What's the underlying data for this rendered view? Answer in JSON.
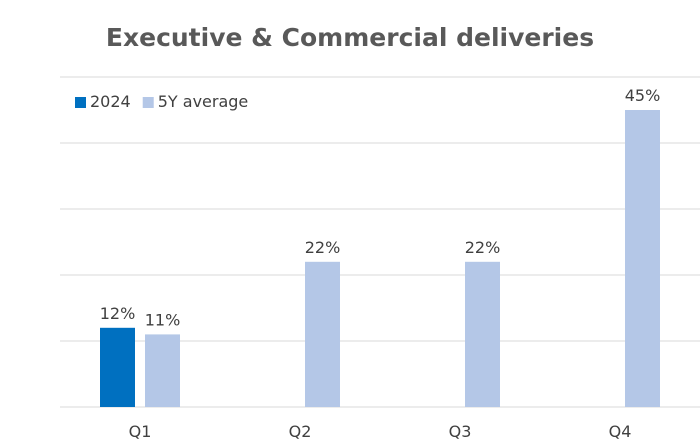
{
  "chart_data": {
    "type": "bar",
    "title": "Executive & Commercial deliveries",
    "xlabel": "",
    "ylabel": "",
    "categories": [
      "Q1",
      "Q2",
      "Q3",
      "Q4"
    ],
    "series": [
      {
        "name": "2024",
        "color": "#0070C0",
        "values": [
          12,
          null,
          null,
          null
        ],
        "labels": [
          "12%",
          "",
          "",
          ""
        ]
      },
      {
        "name": "5Y average",
        "color": "#B4C7E7",
        "values": [
          11,
          22,
          22,
          45
        ],
        "labels": [
          "11%",
          "22%",
          "22%",
          "45%"
        ]
      }
    ],
    "ylim": [
      0,
      50
    ],
    "unit": "%",
    "grid": true,
    "legend_position": "top-left"
  }
}
